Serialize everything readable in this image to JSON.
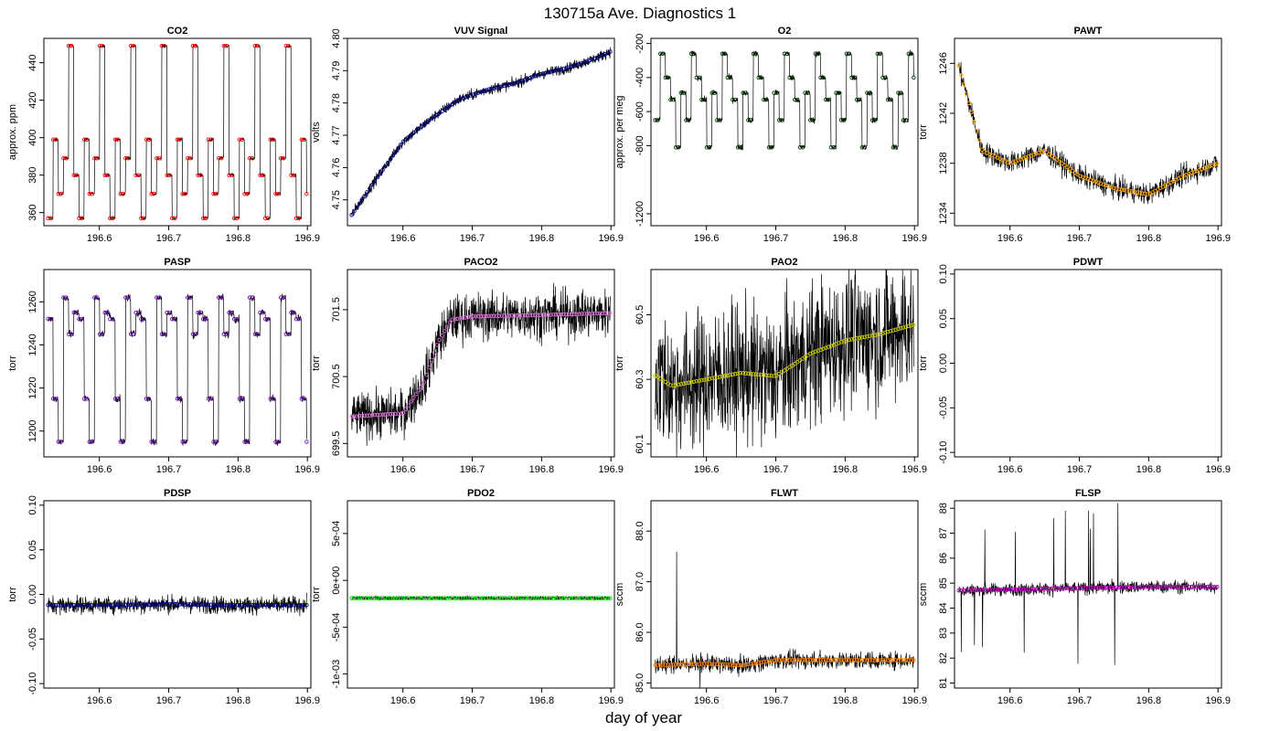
{
  "figure": {
    "title": "130715a   Ave. Diagnostics 1",
    "xlabel": "day of year"
  },
  "chart_data": [
    {
      "type": "line",
      "title": "CO2",
      "ylabel": "approx. ppm",
      "xlim": [
        196.52,
        196.905
      ],
      "ylim": [
        353,
        453
      ],
      "xticks": [
        "196.6",
        "196.7",
        "196.8",
        "196.9"
      ],
      "yticks": [
        "360",
        "380",
        "400",
        "420",
        "440"
      ],
      "ytick_values": [
        360,
        380,
        400,
        420,
        440
      ],
      "line_color": "#000000",
      "point_color": "#ff0000",
      "shape": "steps",
      "levels": [
        357,
        399,
        370,
        389,
        449,
        380
      ],
      "noise": 0.6,
      "x_sample": [
        196.52,
        196.55,
        196.6,
        196.65,
        196.7,
        196.75,
        196.8,
        196.85,
        196.9
      ],
      "y_sample": [
        357,
        399,
        370,
        449,
        389,
        357,
        399,
        370,
        399
      ]
    },
    {
      "type": "line",
      "title": "VUV Signal",
      "ylabel": "volts",
      "xlim": [
        196.52,
        196.905
      ],
      "ylim": [
        4.742,
        4.8
      ],
      "xticks": [
        "196.6",
        "196.7",
        "196.8",
        "196.9"
      ],
      "yticks": [
        "4.75",
        "4.76",
        "4.77",
        "4.78",
        "4.79",
        "4.80"
      ],
      "ytick_values": [
        4.75,
        4.76,
        4.77,
        4.78,
        4.79,
        4.8
      ],
      "line_color": "#000000",
      "point_color": "#00008b",
      "shape": "curve",
      "noise": 0.0012,
      "x_sample": [
        196.525,
        196.56,
        196.6,
        196.64,
        196.68,
        196.72,
        196.76,
        196.8,
        196.84,
        196.88,
        196.9
      ],
      "y_sample": [
        4.745,
        4.756,
        4.768,
        4.775,
        4.781,
        4.784,
        4.786,
        4.789,
        4.791,
        4.794,
        4.796
      ]
    },
    {
      "type": "line",
      "title": "O2",
      "ylabel": "approx. per meg",
      "xlim": [
        196.52,
        196.905
      ],
      "ylim": [
        -1270,
        -170
      ],
      "xticks": [
        "196.6",
        "196.7",
        "196.8",
        "196.9"
      ],
      "yticks": [
        "-1200",
        "-800",
        "-600",
        "-400",
        "-200"
      ],
      "ytick_values": [
        -1200,
        -800,
        -600,
        -400,
        -200
      ],
      "line_color": "#000000",
      "point_color": "#003300",
      "shape": "steps",
      "levels": [
        -650,
        -260,
        -400,
        -530,
        -810,
        -490
      ],
      "noise": 12,
      "x_sample": [
        196.52,
        196.55,
        196.6,
        196.65,
        196.7,
        196.75,
        196.8,
        196.85,
        196.9
      ],
      "y_sample": [
        -650,
        -260,
        -400,
        -810,
        -530,
        -650,
        -260,
        -400,
        -420
      ]
    },
    {
      "type": "line",
      "title": "PAWT",
      "ylabel": "torr",
      "xlim": [
        196.52,
        196.905
      ],
      "ylim": [
        1233,
        1248
      ],
      "xticks": [
        "196.6",
        "196.7",
        "196.8",
        "196.9"
      ],
      "yticks": [
        "1234",
        "1238",
        "1242",
        "1246"
      ],
      "ytick_values": [
        1234,
        1238,
        1242,
        1246
      ],
      "line_color": "#000000",
      "point_color": "#ffa500",
      "shape": "curve",
      "noise": 0.6,
      "x_sample": [
        196.52,
        196.54,
        196.56,
        196.6,
        196.65,
        196.7,
        196.75,
        196.8,
        196.85,
        196.9
      ],
      "y_sample": [
        1247,
        1243,
        1239,
        1238,
        1239,
        1237,
        1236,
        1235.5,
        1237,
        1238
      ]
    },
    {
      "type": "line",
      "title": "PASP",
      "ylabel": "torr",
      "xlim": [
        196.52,
        196.905
      ],
      "ylim": [
        1188,
        1275
      ],
      "xticks": [
        "196.6",
        "196.7",
        "196.8",
        "196.9"
      ],
      "yticks": [
        "1200",
        "1220",
        "1240",
        "1260"
      ],
      "ytick_values": [
        1200,
        1220,
        1240,
        1260
      ],
      "line_color": "#000000",
      "point_color": "#6a0dad",
      "shape": "steps",
      "levels": [
        1252,
        1215,
        1195,
        1262,
        1245,
        1255
      ],
      "noise": 1.2,
      "x_sample": [
        196.52,
        196.55,
        196.6,
        196.65,
        196.7,
        196.75,
        196.8,
        196.85,
        196.9
      ],
      "y_sample": [
        1252,
        1215,
        1195,
        1262,
        1245,
        1195,
        1252,
        1215,
        1252
      ]
    },
    {
      "type": "line",
      "title": "PACO2",
      "ylabel": "torr",
      "xlim": [
        196.52,
        196.905
      ],
      "ylim": [
        699.3,
        702.1
      ],
      "xticks": [
        "196.6",
        "196.7",
        "196.8",
        "196.9"
      ],
      "yticks": [
        "699.5",
        "700.5",
        "701.5"
      ],
      "ytick_values": [
        699.5,
        700.5,
        701.5
      ],
      "line_color": "#000000",
      "point_color": "#da70d6",
      "shape": "sigmoid",
      "noise": 0.25,
      "x_sample": [
        196.52,
        196.6,
        196.63,
        196.65,
        196.67,
        196.7,
        196.8,
        196.9
      ],
      "y_sample": [
        699.9,
        699.95,
        700.4,
        701.0,
        701.35,
        701.4,
        701.42,
        701.45
      ]
    },
    {
      "type": "line",
      "title": "PAO2",
      "ylabel": "torr",
      "xlim": [
        196.52,
        196.905
      ],
      "ylim": [
        60.06,
        60.64
      ],
      "xticks": [
        "196.6",
        "196.7",
        "196.8",
        "196.9"
      ],
      "yticks": [
        "60.1",
        "60.3",
        "60.5"
      ],
      "ytick_values": [
        60.1,
        60.3,
        60.5
      ],
      "line_color": "#000000",
      "point_color": "#cccc00",
      "shape": "curve",
      "noise": 0.15,
      "x_sample": [
        196.52,
        196.55,
        196.6,
        196.65,
        196.7,
        196.75,
        196.8,
        196.85,
        196.9
      ],
      "y_sample": [
        60.32,
        60.28,
        60.3,
        60.32,
        60.31,
        60.38,
        60.42,
        60.44,
        60.47
      ]
    },
    {
      "type": "line",
      "title": "PDWT",
      "ylabel": "torr",
      "xlim": [
        196.52,
        196.905
      ],
      "ylim": [
        -0.105,
        0.105
      ],
      "xticks": [
        "196.6",
        "196.7",
        "196.8",
        "196.9"
      ],
      "yticks": [
        "-0.10",
        "-0.05",
        "0.00",
        "0.05",
        "0.10"
      ],
      "ytick_values": [
        -0.1,
        -0.05,
        0,
        0.05,
        0.1
      ],
      "line_color": "#000000",
      "point_color": "#000000",
      "shape": "empty",
      "noise": 0,
      "x_sample": [],
      "y_sample": []
    },
    {
      "type": "line",
      "title": "PDSP",
      "ylabel": "torr",
      "xlim": [
        196.52,
        196.905
      ],
      "ylim": [
        -0.105,
        0.105
      ],
      "xticks": [
        "196.6",
        "196.7",
        "196.8",
        "196.9"
      ],
      "yticks": [
        "-0.10",
        "-0.05",
        "0.00",
        "0.05",
        "0.10"
      ],
      "ytick_values": [
        -0.1,
        -0.05,
        0,
        0.05,
        0.1
      ],
      "line_color": "#000000",
      "point_color": "#00008b",
      "shape": "curve",
      "noise": 0.007,
      "x_sample": [
        196.52,
        196.6,
        196.7,
        196.8,
        196.9
      ],
      "y_sample": [
        -0.012,
        -0.012,
        -0.011,
        -0.012,
        -0.012
      ]
    },
    {
      "type": "line",
      "title": "PDO2",
      "ylabel": "torr",
      "xlim": [
        196.52,
        196.905
      ],
      "ylim": [
        -0.00115,
        0.00085
      ],
      "xticks": [
        "196.6",
        "196.7",
        "196.8",
        "196.9"
      ],
      "yticks": [
        "-1e-03",
        "-5e-04",
        "0e+00",
        "5e-04"
      ],
      "ytick_values": [
        -0.001,
        -0.0005,
        0,
        0.0005
      ],
      "line_color": "#000000",
      "point_color": "#00cc00",
      "shape": "curve",
      "noise": 1.5e-05,
      "x_sample": [
        196.52,
        196.6,
        196.7,
        196.8,
        196.9
      ],
      "y_sample": [
        -0.00019,
        -0.00019,
        -0.00019,
        -0.00019,
        -0.00019
      ]
    },
    {
      "type": "line",
      "title": "FLWT",
      "ylabel": "sccm",
      "xlim": [
        196.52,
        196.905
      ],
      "ylim": [
        84.9,
        88.6
      ],
      "xticks": [
        "196.6",
        "196.7",
        "196.8",
        "196.9"
      ],
      "yticks": [
        "85.0",
        "86.0",
        "87.0",
        "88.0"
      ],
      "ytick_values": [
        85,
        86,
        87,
        88
      ],
      "line_color": "#000000",
      "point_color": "#ff7f00",
      "shape": "curve",
      "noise": 0.12,
      "spikes": 0.006,
      "x_sample": [
        196.52,
        196.6,
        196.65,
        196.7,
        196.8,
        196.9
      ],
      "y_sample": [
        85.35,
        85.38,
        85.35,
        85.45,
        85.45,
        85.45
      ]
    },
    {
      "type": "line",
      "title": "FLSP",
      "ylabel": "sccm",
      "xlim": [
        196.52,
        196.905
      ],
      "ylim": [
        80.8,
        88.3
      ],
      "xticks": [
        "196.6",
        "196.7",
        "196.8",
        "196.9"
      ],
      "yticks": [
        "81",
        "82",
        "83",
        "84",
        "85",
        "86",
        "87",
        "88"
      ],
      "ytick_values": [
        81,
        82,
        83,
        84,
        85,
        86,
        87,
        88
      ],
      "line_color": "#000000",
      "point_color": "#c000c0",
      "shape": "curve",
      "noise": 0.18,
      "spikes": 0.012,
      "x_sample": [
        196.52,
        196.6,
        196.7,
        196.8,
        196.9
      ],
      "y_sample": [
        84.7,
        84.75,
        84.8,
        84.85,
        84.85
      ]
    }
  ]
}
